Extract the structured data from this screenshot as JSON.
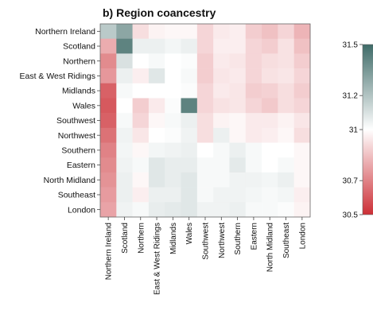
{
  "chart_data": {
    "type": "heatmap",
    "title": "b) Region coancestry",
    "rows": [
      "Northern Ireland",
      "Scotland",
      "Northern",
      "East & West Ridings",
      "Midlands",
      "Wales",
      "Southwest",
      "Northwest",
      "Southern",
      "Eastern",
      "North Midland",
      "Southeast",
      "London"
    ],
    "columns": [
      "Northern Ireland",
      "Scotland",
      "Northern",
      "East & West Ridings",
      "Midlands",
      "Wales",
      "Southwest",
      "Northwest",
      "Southern",
      "Eastern",
      "North Midland",
      "Southeast",
      "London"
    ],
    "values": [
      [
        31.18,
        31.3,
        30.92,
        30.97,
        30.98,
        30.98,
        30.9,
        30.95,
        30.96,
        30.88,
        30.85,
        30.9,
        30.82
      ],
      [
        30.8,
        31.42,
        31.05,
        31.05,
        31.03,
        31.05,
        30.9,
        30.96,
        30.96,
        30.9,
        30.88,
        30.93,
        30.85
      ],
      [
        30.72,
        31.1,
        31.0,
        31.02,
        31.0,
        31.01,
        30.88,
        30.95,
        30.94,
        30.9,
        30.92,
        30.93,
        30.88
      ],
      [
        30.75,
        31.05,
        30.96,
        31.08,
        31.0,
        31.02,
        30.88,
        30.94,
        30.95,
        30.9,
        30.93,
        30.94,
        30.9
      ],
      [
        30.62,
        31.02,
        31.0,
        31.0,
        31.0,
        31.01,
        30.9,
        30.95,
        30.94,
        30.88,
        30.89,
        30.92,
        30.88
      ],
      [
        30.6,
        31.0,
        30.88,
        30.95,
        31.01,
        31.42,
        30.9,
        30.93,
        30.94,
        30.9,
        30.87,
        30.92,
        30.9
      ],
      [
        30.62,
        31.02,
        30.9,
        30.98,
        31.02,
        31.05,
        30.92,
        30.97,
        30.98,
        30.95,
        30.95,
        30.97,
        30.94
      ],
      [
        30.66,
        31.04,
        30.94,
        31.0,
        31.01,
        31.04,
        30.92,
        31.05,
        30.98,
        30.95,
        30.96,
        30.98,
        30.92
      ],
      [
        30.7,
        31.03,
        30.98,
        31.03,
        31.04,
        31.05,
        31.0,
        31.02,
        31.05,
        31.02,
        31.0,
        31.0,
        30.98
      ],
      [
        30.72,
        31.04,
        31.02,
        31.08,
        31.06,
        31.06,
        31.02,
        31.02,
        31.07,
        31.02,
        31.0,
        31.02,
        30.98
      ],
      [
        30.74,
        31.05,
        30.98,
        31.08,
        31.06,
        31.08,
        31.02,
        31.02,
        31.04,
        31.04,
        31.03,
        31.05,
        30.98
      ],
      [
        30.76,
        31.05,
        30.96,
        31.05,
        31.05,
        31.08,
        31.02,
        31.04,
        31.04,
        31.03,
        31.02,
        31.03,
        30.96
      ],
      [
        30.78,
        31.04,
        31.02,
        31.06,
        31.07,
        31.08,
        31.04,
        31.04,
        31.05,
        31.02,
        31.02,
        31.01,
        30.97
      ]
    ],
    "colorbar": {
      "range": [
        30.5,
        31.5
      ],
      "ticks": [
        "30.5",
        "30.7",
        "31",
        "31.2",
        "31.5"
      ],
      "low_color": "#cc2f36",
      "mid_color": "#ffffff",
      "high_color": "#3f6b68"
    }
  }
}
